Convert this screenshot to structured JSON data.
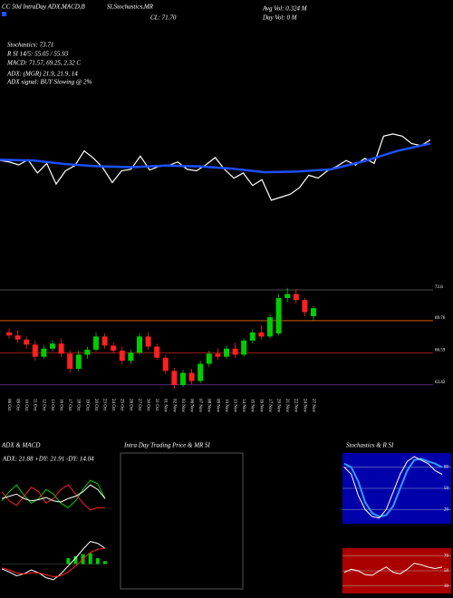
{
  "header": {
    "t1": "CC 50d IntraDay ADX,MACD,B",
    "t2": "SI,Stochastics,MR",
    "avg": "Avg Vol: 0.324 M",
    "day": "Day Vol: 0 M",
    "close": "CL: 71.70",
    "stoch": "Stochastics: 73.71",
    "rsi": "R SI 14/5: 55.05 / 55.93",
    "macd": "MACD: 71.57, 69.25, 2.32 C",
    "adx": "ADX: (MGR) 21.9, 21.9, 14",
    "signal": "ADX signal: BUY Slowing @ 2%"
  },
  "chart_data": [
    {
      "type": "line",
      "ylim": [
        60,
        76
      ],
      "series": [
        {
          "name": "Close",
          "color": "#ffffff",
          "values": [
            70.2,
            70.0,
            69.6,
            70.3,
            68.5,
            69.8,
            67.0,
            68.8,
            69.5,
            71.5,
            70.5,
            69.2,
            67.2,
            68.8,
            69.0,
            70.8,
            68.9,
            69.4,
            69.5,
            70.0,
            69.0,
            68.8,
            69.6,
            70.6,
            69.0,
            67.8,
            68.5,
            66.8,
            67.6,
            64.8,
            65.2,
            65.6,
            66.5,
            68.2,
            67.8,
            68.8,
            69.4,
            70.2,
            69.6,
            70.5,
            69.8,
            73.5,
            73.8,
            73.5,
            72.5,
            72.2,
            73.0
          ]
        },
        {
          "name": "MA",
          "color": "#1e50ff",
          "values": [
            70.3,
            70.2,
            69.7,
            69.4,
            69.3,
            69.5,
            69.4,
            69.1,
            68.6,
            68.7,
            69.0,
            70.1,
            71.5,
            72.5
          ]
        }
      ]
    },
    {
      "type": "candlestick",
      "ylim": [
        62.5,
        73.25
      ],
      "candles": [
        [
          68.6,
          69.0,
          68.0,
          68.3
        ],
        [
          68.3,
          68.8,
          67.6,
          67.9
        ],
        [
          67.9,
          68.2,
          67.0,
          67.4
        ],
        [
          67.4,
          67.8,
          65.8,
          66.2
        ],
        [
          66.2,
          67.3,
          66.0,
          67.0
        ],
        [
          67.0,
          67.8,
          66.8,
          67.5
        ],
        [
          67.5,
          68.0,
          66.2,
          66.5
        ],
        [
          66.5,
          66.8,
          64.6,
          65.0
        ],
        [
          65.0,
          66.8,
          64.8,
          66.4
        ],
        [
          66.4,
          67.2,
          66.0,
          66.9
        ],
        [
          66.9,
          68.6,
          66.7,
          68.2
        ],
        [
          68.2,
          68.5,
          67.0,
          67.3
        ],
        [
          67.3,
          67.6,
          66.5,
          66.8
        ],
        [
          66.8,
          67.2,
          65.4,
          65.8
        ],
        [
          65.8,
          66.9,
          65.5,
          66.6
        ],
        [
          66.6,
          68.5,
          66.4,
          68.2
        ],
        [
          68.2,
          68.6,
          66.9,
          67.2
        ],
        [
          67.2,
          67.5,
          65.9,
          66.1
        ],
        [
          66.1,
          66.4,
          64.5,
          64.8
        ],
        [
          64.8,
          65.1,
          63.0,
          63.4
        ],
        [
          63.4,
          64.9,
          63.2,
          64.6
        ],
        [
          64.6,
          65.0,
          63.5,
          63.8
        ],
        [
          63.8,
          65.8,
          63.6,
          65.5
        ],
        [
          65.5,
          66.8,
          65.2,
          66.5
        ],
        [
          66.5,
          67.0,
          65.9,
          66.2
        ],
        [
          66.2,
          67.3,
          66.0,
          67.0
        ],
        [
          67.0,
          67.6,
          66.1,
          66.4
        ],
        [
          66.4,
          68.0,
          66.2,
          67.8
        ],
        [
          67.8,
          68.9,
          67.5,
          68.6
        ],
        [
          68.6,
          69.3,
          67.9,
          68.2
        ],
        [
          68.2,
          70.4,
          68.0,
          70.1
        ],
        [
          68.5,
          72.4,
          68.3,
          72.0
        ],
        [
          72.0,
          73.0,
          71.6,
          72.4
        ],
        [
          72.4,
          72.9,
          71.4,
          71.8
        ],
        [
          71.8,
          72.0,
          70.2,
          70.6
        ],
        [
          70.2,
          71.2,
          69.8,
          71.0
        ]
      ],
      "categories": [
        "06 Oct",
        "09 Oct",
        "10 Oct",
        "11 Oct",
        "12 Oct",
        "13 Oct",
        "16 Oct",
        "17 Oct",
        "18 Oct",
        "19 Oct",
        "20 Oct",
        "23 Oct",
        "24 Oct",
        "25 Oct",
        "26 Oct",
        "27 Oct",
        "30 Oct",
        "31 Oct",
        "01 Nov",
        "02 Nov",
        "03 Nov",
        "06 Nov",
        "07 Nov",
        "08 Nov",
        "09 Nov",
        "10 Nov",
        "13 Nov",
        "14 Nov",
        "15 Nov",
        "16 Nov",
        "17 Nov",
        "20 Nov",
        "21 Nov",
        "22 Nov",
        "24 Nov",
        "27 Nov"
      ],
      "up_color": "#00cc00",
      "down_color": "#ff2020",
      "levels": [
        72.8,
        69.76,
        66.59,
        63.42
      ],
      "level_colors": [
        "#666666",
        "#ff6600",
        "#cc2222",
        "#7733aa"
      ]
    },
    {
      "type": "line",
      "title": "ADX & MACD",
      "label": "ADX: 21.88 +DY: 21.91 -DY: 14.04",
      "ylim": [
        0,
        50
      ],
      "series": [
        {
          "name": "+DY",
          "color": "#00cc00",
          "values": [
            20,
            28,
            34,
            25,
            18,
            22,
            30,
            26,
            18,
            14,
            20,
            30,
            38,
            35,
            22
          ]
        },
        {
          "name": "-DY",
          "color": "#ff2020",
          "values": [
            28,
            20,
            16,
            24,
            32,
            28,
            18,
            22,
            30,
            34,
            26,
            18,
            12,
            14,
            14
          ]
        },
        {
          "name": "ADX",
          "color": "#ffffff",
          "values": [
            22,
            24,
            26,
            22,
            20,
            21,
            23,
            20,
            19,
            22,
            24,
            28,
            34,
            30,
            22
          ]
        }
      ]
    },
    {
      "type": "bar",
      "ylim": [
        -3,
        3
      ],
      "series": [
        {
          "name": "MACD",
          "color": "#ffffff",
          "values": [
            -0.5,
            -0.8,
            -1.2,
            -1.0,
            -0.6,
            -0.9,
            -1.4,
            -1.6,
            -1.0,
            -0.2,
            0.6,
            1.5,
            2.3,
            2.1,
            1.6
          ]
        },
        {
          "name": "Signal",
          "color": "#ff2020",
          "values": [
            -0.4,
            -0.6,
            -0.9,
            -1.0,
            -0.9,
            -0.9,
            -1.1,
            -1.3,
            -1.2,
            -0.8,
            -0.2,
            0.5,
            1.2,
            1.5,
            1.6
          ]
        }
      ],
      "histogram": [
        0,
        0,
        0,
        0,
        0,
        0,
        0,
        0,
        0,
        0.6,
        0.8,
        1.0,
        1.1,
        0.6,
        0.3
      ]
    },
    {
      "type": "line",
      "title": "Intra Day Trading Price & MR SI",
      "series": []
    },
    {
      "type": "line",
      "title": "Stochastics & R SI",
      "ylim": [
        0,
        100
      ],
      "yticks": [
        80,
        50,
        20
      ],
      "background": "#0000aa",
      "series": [
        {
          "name": "%D",
          "color": "#3399ff",
          "values": [
            85,
            80,
            60,
            30,
            15,
            10,
            12,
            25,
            50,
            75,
            90,
            92,
            88,
            85,
            80
          ]
        },
        {
          "name": "%K",
          "color": "#ffffff",
          "values": [
            80,
            70,
            40,
            20,
            10,
            8,
            20,
            45,
            70,
            88,
            95,
            90,
            85,
            75,
            70
          ]
        }
      ]
    },
    {
      "type": "line",
      "ylim": [
        20,
        80
      ],
      "yticks": [
        70,
        50,
        30
      ],
      "background": "#aa0000",
      "series": [
        {
          "name": "RSI",
          "color": "#ffffff",
          "values": [
            48,
            52,
            50,
            45,
            44,
            50,
            55,
            48,
            46,
            52,
            60,
            58,
            55,
            53,
            55
          ]
        }
      ]
    }
  ]
}
